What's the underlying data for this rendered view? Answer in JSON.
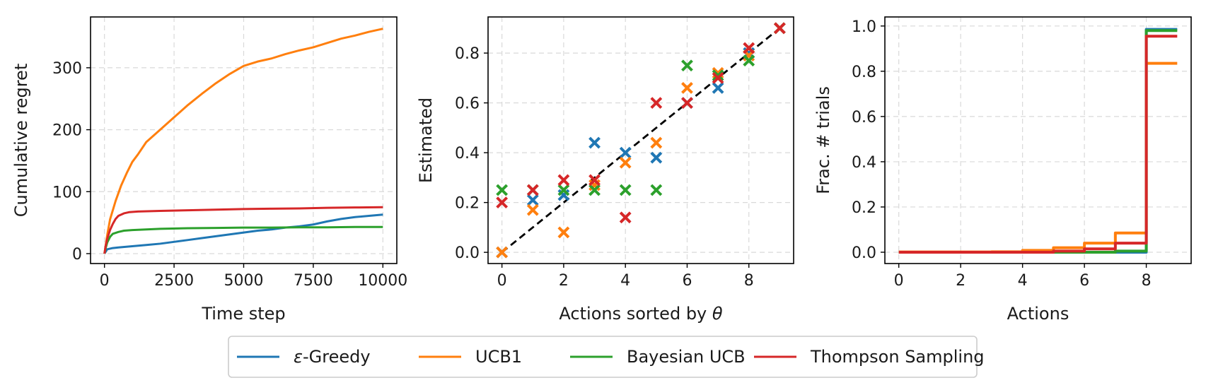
{
  "colors": {
    "eps_greedy": "#1f77b4",
    "ucb1": "#ff7f0e",
    "bayes_ucb": "#2ca02c",
    "thompson": "#d62728",
    "reference": "#000000"
  },
  "legend": {
    "placement": "bottom-center",
    "entries": [
      {
        "key": "eps_greedy",
        "label_prefix": "ε",
        "label_rest": "-Greedy"
      },
      {
        "key": "ucb1",
        "label": "UCB1"
      },
      {
        "key": "bayes_ucb",
        "label": "Bayesian UCB"
      },
      {
        "key": "thompson",
        "label": "Thompson Sampling"
      }
    ]
  },
  "chart_data": [
    {
      "type": "line",
      "xlabel": "Time step",
      "ylabel": "Cumulative regret",
      "xlim": [
        -500,
        10500
      ],
      "ylim": [
        -16,
        382
      ],
      "xticks": [
        0,
        2500,
        5000,
        7500,
        10000
      ],
      "yticks": [
        0,
        100,
        200,
        300
      ],
      "grid": true,
      "series": [
        {
          "key": "eps_greedy",
          "x": [
            0,
            100,
            300,
            500,
            1000,
            1500,
            2000,
            2500,
            3000,
            3500,
            4000,
            4500,
            5000,
            5500,
            6000,
            6500,
            7000,
            7500,
            8000,
            8500,
            9000,
            9500,
            10000
          ],
          "y": [
            0,
            7,
            9,
            10,
            12,
            14,
            16,
            19,
            22,
            25,
            28,
            31,
            34,
            37,
            39,
            42,
            44,
            47,
            52,
            56,
            59,
            61,
            63
          ]
        },
        {
          "key": "ucb1",
          "x": [
            0,
            100,
            200,
            400,
            600,
            800,
            1000,
            1200,
            1500,
            2000,
            2500,
            3000,
            3500,
            4000,
            4500,
            5000,
            5500,
            6000,
            6500,
            7000,
            7500,
            8000,
            8500,
            9000,
            9500,
            10000
          ],
          "y": [
            0,
            30,
            55,
            85,
            110,
            130,
            148,
            160,
            180,
            200,
            220,
            240,
            258,
            275,
            290,
            303,
            310,
            315,
            322,
            328,
            333,
            340,
            347,
            352,
            358,
            363
          ]
        },
        {
          "key": "bayes_ucb",
          "x": [
            0,
            50,
            100,
            200,
            300,
            500,
            700,
            1000,
            2000,
            3000,
            4000,
            5000,
            6000,
            7000,
            8000,
            9000,
            10000
          ],
          "y": [
            0,
            10,
            18,
            27,
            32,
            35,
            37,
            38,
            40,
            41,
            41.5,
            42,
            42,
            42.5,
            42.5,
            43,
            43
          ]
        },
        {
          "key": "thompson",
          "x": [
            0,
            50,
            100,
            200,
            300,
            400,
            500,
            700,
            900,
            1200,
            2000,
            3000,
            4000,
            5000,
            6000,
            7000,
            8000,
            9000,
            10000
          ],
          "y": [
            0,
            14,
            24,
            38,
            48,
            56,
            61,
            65,
            67,
            68,
            69,
            70,
            71,
            72,
            72.5,
            73,
            74,
            74.5,
            75
          ]
        }
      ]
    },
    {
      "type": "scatter",
      "xlabel_prefix": "Actions sorted by ",
      "xlabel_symbol": "θ",
      "ylabel": "Estimated",
      "xlim": [
        -0.45,
        9.45
      ],
      "ylim": [
        -0.045,
        0.945
      ],
      "xticks": [
        0,
        2,
        4,
        6,
        8
      ],
      "yticks": [
        "0.0",
        "0.2",
        "0.4",
        "0.6",
        "0.8"
      ],
      "grid": true,
      "marker": "x",
      "reference_line": {
        "x": [
          0,
          9
        ],
        "y": [
          0.0,
          0.9
        ],
        "style": "dashed"
      },
      "series": [
        {
          "key": "eps_greedy",
          "x": [
            0,
            1,
            2,
            3,
            4,
            5,
            6,
            7,
            8,
            9
          ],
          "y": [
            0.0,
            0.21,
            0.23,
            0.44,
            0.4,
            0.38,
            0.6,
            0.66,
            0.8,
            0.9
          ]
        },
        {
          "key": "ucb1",
          "x": [
            0,
            1,
            2,
            3,
            4,
            5,
            6,
            7,
            8,
            9
          ],
          "y": [
            0.0,
            0.17,
            0.08,
            0.27,
            0.36,
            0.44,
            0.66,
            0.72,
            0.79,
            0.9
          ]
        },
        {
          "key": "bayes_ucb",
          "x": [
            0,
            1,
            2,
            3,
            4,
            5,
            6,
            7,
            8,
            9
          ],
          "y": [
            0.25,
            0.25,
            0.25,
            0.25,
            0.25,
            0.25,
            0.75,
            0.71,
            0.77,
            0.9
          ]
        },
        {
          "key": "thompson",
          "x": [
            0,
            1,
            2,
            3,
            4,
            5,
            6,
            7,
            8,
            9
          ],
          "y": [
            0.2,
            0.25,
            0.29,
            0.29,
            0.14,
            0.6,
            0.6,
            0.7,
            0.82,
            0.9
          ]
        }
      ]
    },
    {
      "type": "line",
      "step": "post",
      "xlabel": "Actions",
      "ylabel": "Frac. # trials",
      "xlim": [
        -0.45,
        9.45
      ],
      "ylim": [
        -0.05,
        1.04
      ],
      "xticks": [
        0,
        2,
        4,
        6,
        8
      ],
      "yticks": [
        "0.0",
        "0.2",
        "0.4",
        "0.6",
        "0.8",
        "1.0"
      ],
      "grid": true,
      "series": [
        {
          "key": "eps_greedy",
          "x": [
            0,
            1,
            2,
            3,
            4,
            5,
            6,
            7,
            8,
            9
          ],
          "y": [
            0,
            0,
            0,
            0,
            0,
            0,
            0,
            0,
            0.985,
            0.985
          ]
        },
        {
          "key": "ucb1",
          "x": [
            0,
            1,
            2,
            3,
            4,
            5,
            6,
            7,
            8,
            9
          ],
          "y": [
            0.001,
            0.001,
            0.001,
            0.002,
            0.008,
            0.02,
            0.04,
            0.085,
            0.835,
            0.835
          ]
        },
        {
          "key": "bayes_ucb",
          "x": [
            0,
            1,
            2,
            3,
            4,
            5,
            6,
            7,
            8,
            9
          ],
          "y": [
            0,
            0,
            0,
            0,
            0,
            0,
            0,
            0.005,
            0.98,
            0.98
          ]
        },
        {
          "key": "thompson",
          "x": [
            0,
            1,
            2,
            3,
            4,
            5,
            6,
            7,
            8,
            9
          ],
          "y": [
            0,
            0,
            0,
            0,
            0,
            0.005,
            0.015,
            0.04,
            0.955,
            0.955
          ]
        }
      ]
    }
  ]
}
